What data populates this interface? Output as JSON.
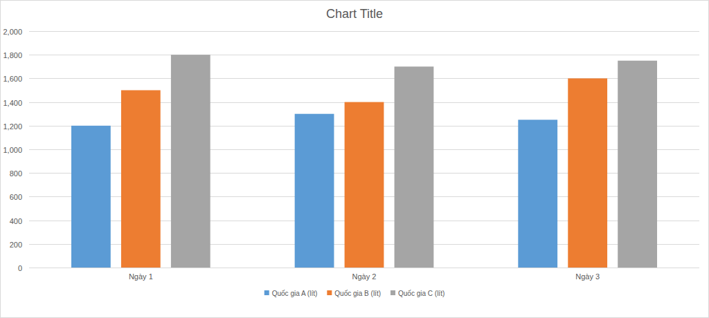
{
  "chart_data": {
    "type": "bar",
    "title": "Chart Title",
    "categories": [
      "Ngày 1",
      "Ngày 2",
      "Ngày 3"
    ],
    "series": [
      {
        "name": "Quốc gia A (lít)",
        "color": "#5b9bd5",
        "values": [
          1200,
          1300,
          1250
        ]
      },
      {
        "name": "Quốc gia B (lít)",
        "color": "#ed7d31",
        "values": [
          1500,
          1400,
          1600
        ]
      },
      {
        "name": "Quốc gia C (lít)",
        "color": "#a5a5a5",
        "values": [
          1800,
          1700,
          1750
        ]
      }
    ],
    "ylim": [
      0,
      2000
    ],
    "yticks": [
      0,
      200,
      400,
      600,
      800,
      {
        "value": 1000,
        "label": "1,000"
      },
      {
        "value": 1200,
        "label": "1,200"
      },
      {
        "value": 1400,
        "label": "1,400"
      },
      {
        "value": 1600,
        "label": "1,600"
      },
      {
        "value": 1800,
        "label": "1,800"
      },
      {
        "value": 2000,
        "label": "2,000"
      }
    ],
    "grid": true,
    "legend": "bottom"
  }
}
